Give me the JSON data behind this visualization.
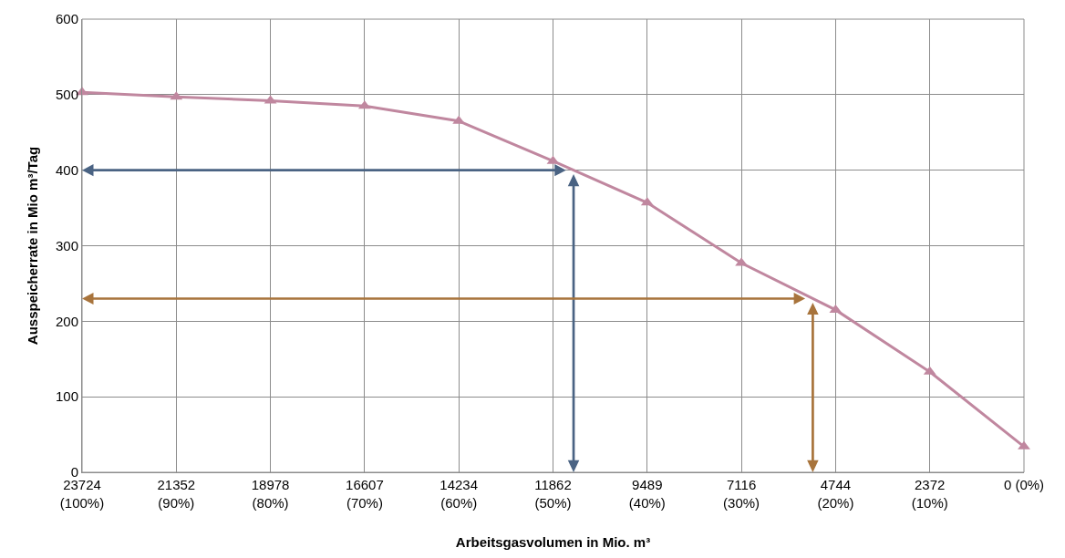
{
  "chart_data": {
    "type": "line",
    "xlabel": "Arbeitsgasvolumen in Mio. m³",
    "ylabel": "Ausspeicherrate in Mio m³/Tag",
    "categories": [
      "23724\n(100%)",
      "21352\n(90%)",
      "18978\n(80%)",
      "16607\n(70%)",
      "14234\n(60%)",
      "11862\n(50%)",
      "9489\n(40%)",
      "7116\n(30%)",
      "4744\n(20%)",
      "2372\n(10%)",
      "0 (0%)"
    ],
    "series": [
      {
        "color": "#c0879f",
        "values": [
          503,
          497,
          492,
          485,
          465,
          412,
          357,
          277,
          215,
          133,
          34
        ]
      }
    ],
    "ylim": [
      0,
      600
    ],
    "yticks": [
      0,
      100,
      200,
      300,
      400,
      500,
      600
    ],
    "grid": true,
    "marker": "triangle",
    "line_style": "solid",
    "ref_lines": [
      {
        "axis": "y",
        "value": 400,
        "color": "#4a6383"
      },
      {
        "axis": "y",
        "value": 230,
        "color": "#a8743c"
      }
    ]
  }
}
